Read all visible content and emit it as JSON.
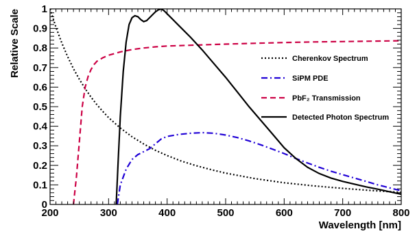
{
  "chart_data": {
    "type": "line",
    "xlabel": "Wavelength [nm]",
    "ylabel": "Relative Scale",
    "xlim": [
      200,
      800
    ],
    "ylim": [
      0,
      1
    ],
    "x_ticks": [
      "200",
      "300",
      "400",
      "500",
      "600",
      "700",
      "800"
    ],
    "y_ticks": [
      "0",
      "0.1",
      "0.2",
      "0.3",
      "0.4",
      "0.5",
      "0.6",
      "0.7",
      "0.8",
      "0.9",
      "1"
    ],
    "grid": false,
    "legend_position": "right",
    "series": [
      {
        "name": "Cherenkov Spectrum",
        "color": "#000000",
        "style": "dotted",
        "x": [
          200,
          210,
          220,
          230,
          240,
          250,
          260,
          270,
          280,
          290,
          300,
          320,
          340,
          360,
          380,
          400,
          425,
          450,
          475,
          500,
          550,
          600,
          650,
          700,
          750,
          800
        ],
        "y": [
          1.0,
          0.907,
          0.826,
          0.756,
          0.694,
          0.64,
          0.592,
          0.549,
          0.51,
          0.476,
          0.444,
          0.391,
          0.346,
          0.309,
          0.277,
          0.25,
          0.221,
          0.198,
          0.178,
          0.16,
          0.132,
          0.111,
          0.095,
          0.082,
          0.071,
          0.062
        ]
      },
      {
        "name": "SiPM PDE",
        "color": "#1f00d6",
        "style": "dashdot",
        "x": [
          315,
          320,
          330,
          340,
          350,
          360,
          370,
          380,
          390,
          400,
          420,
          440,
          460,
          480,
          500,
          520,
          540,
          560,
          580,
          600,
          620,
          640,
          660,
          680,
          700,
          720,
          740,
          760,
          780,
          800
        ],
        "y": [
          0.0,
          0.1,
          0.18,
          0.23,
          0.255,
          0.27,
          0.285,
          0.31,
          0.335,
          0.348,
          0.358,
          0.364,
          0.367,
          0.364,
          0.355,
          0.342,
          0.325,
          0.305,
          0.283,
          0.26,
          0.235,
          0.212,
          0.19,
          0.17,
          0.152,
          0.135,
          0.118,
          0.1,
          0.085,
          0.07
        ]
      },
      {
        "name": "PbF₂ Transmission",
        "color": "#cc0044",
        "style": "dashed",
        "x": [
          240,
          245,
          250,
          255,
          260,
          265,
          270,
          275,
          280,
          290,
          300,
          320,
          340,
          360,
          380,
          400,
          450,
          500,
          550,
          600,
          650,
          700,
          750,
          800
        ],
        "y": [
          0.0,
          0.14,
          0.32,
          0.5,
          0.6,
          0.655,
          0.69,
          0.715,
          0.732,
          0.75,
          0.763,
          0.78,
          0.792,
          0.8,
          0.806,
          0.81,
          0.815,
          0.82,
          0.824,
          0.828,
          0.831,
          0.833,
          0.835,
          0.837
        ]
      },
      {
        "name": "Detected Photon Spectrum",
        "color": "#000000",
        "style": "solid",
        "x": [
          313,
          316,
          320,
          325,
          330,
          335,
          340,
          345,
          350,
          355,
          360,
          365,
          370,
          375,
          380,
          385,
          390,
          395,
          400,
          410,
          420,
          440,
          460,
          480,
          500,
          520,
          540,
          560,
          580,
          600,
          620,
          640,
          660,
          680,
          700,
          720,
          740,
          760,
          780,
          800
        ],
        "y": [
          0.0,
          0.2,
          0.45,
          0.68,
          0.83,
          0.92,
          0.955,
          0.965,
          0.96,
          0.945,
          0.935,
          0.94,
          0.955,
          0.97,
          0.985,
          0.995,
          1.0,
          0.99,
          0.975,
          0.945,
          0.915,
          0.855,
          0.79,
          0.72,
          0.65,
          0.575,
          0.5,
          0.43,
          0.36,
          0.29,
          0.235,
          0.19,
          0.158,
          0.135,
          0.118,
          0.104,
          0.09,
          0.078,
          0.065,
          0.052
        ]
      }
    ]
  }
}
